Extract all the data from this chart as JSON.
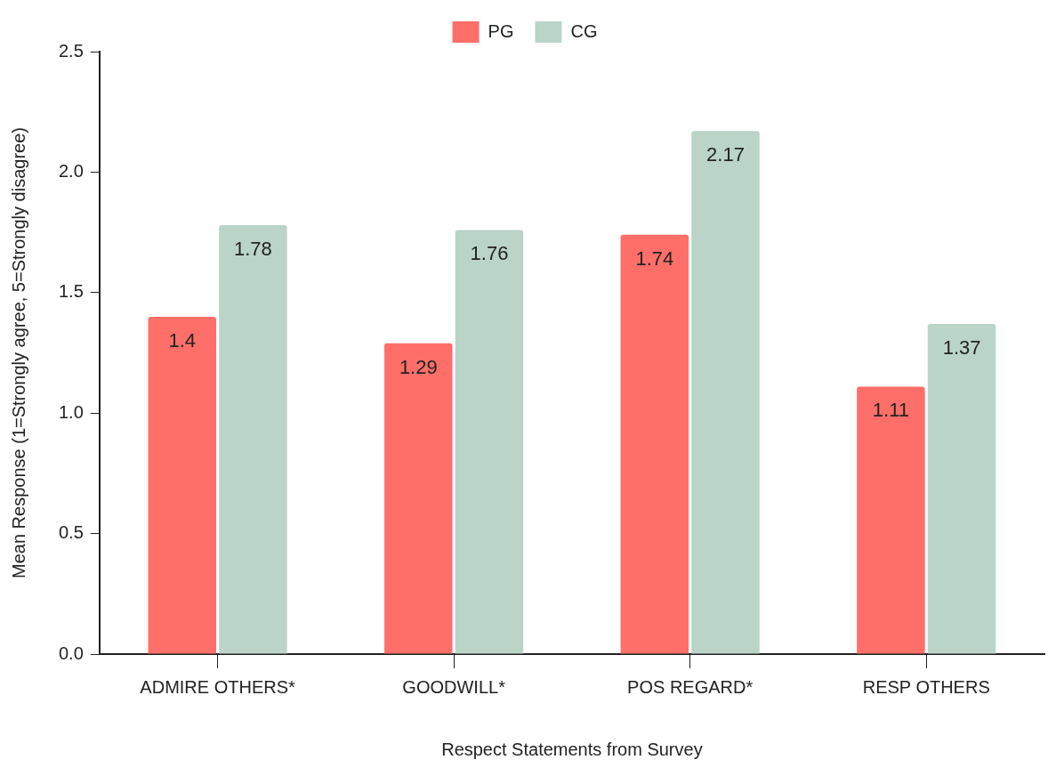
{
  "chart_data": {
    "type": "bar",
    "xlabel": "Respect Statements from Survey",
    "ylabel": "Mean Response (1=Strongly agree, 5=Strongly disagree)",
    "categories": [
      "ADMIRE OTHERS*",
      "GOODWILL*",
      "POS REGARD*",
      "RESP OTHERS"
    ],
    "series": [
      {
        "name": "PG",
        "color": "#ff6f69",
        "values": [
          1.4,
          1.29,
          1.74,
          1.11
        ]
      },
      {
        "name": "CG",
        "color": "#bad4c8",
        "values": [
          1.78,
          1.76,
          2.17,
          1.37
        ]
      }
    ],
    "ylim": [
      0,
      2.5
    ],
    "yticks": [
      {
        "value": 0,
        "label": "0.0"
      },
      {
        "value": 0.5,
        "label": "0.5"
      },
      {
        "value": 1,
        "label": "1.0"
      },
      {
        "value": 1.5,
        "label": "1.5"
      },
      {
        "value": 2,
        "label": "2.0"
      },
      {
        "value": 2.5,
        "label": "2.5"
      }
    ],
    "data_labels": true,
    "grid": false,
    "legend": "top"
  }
}
